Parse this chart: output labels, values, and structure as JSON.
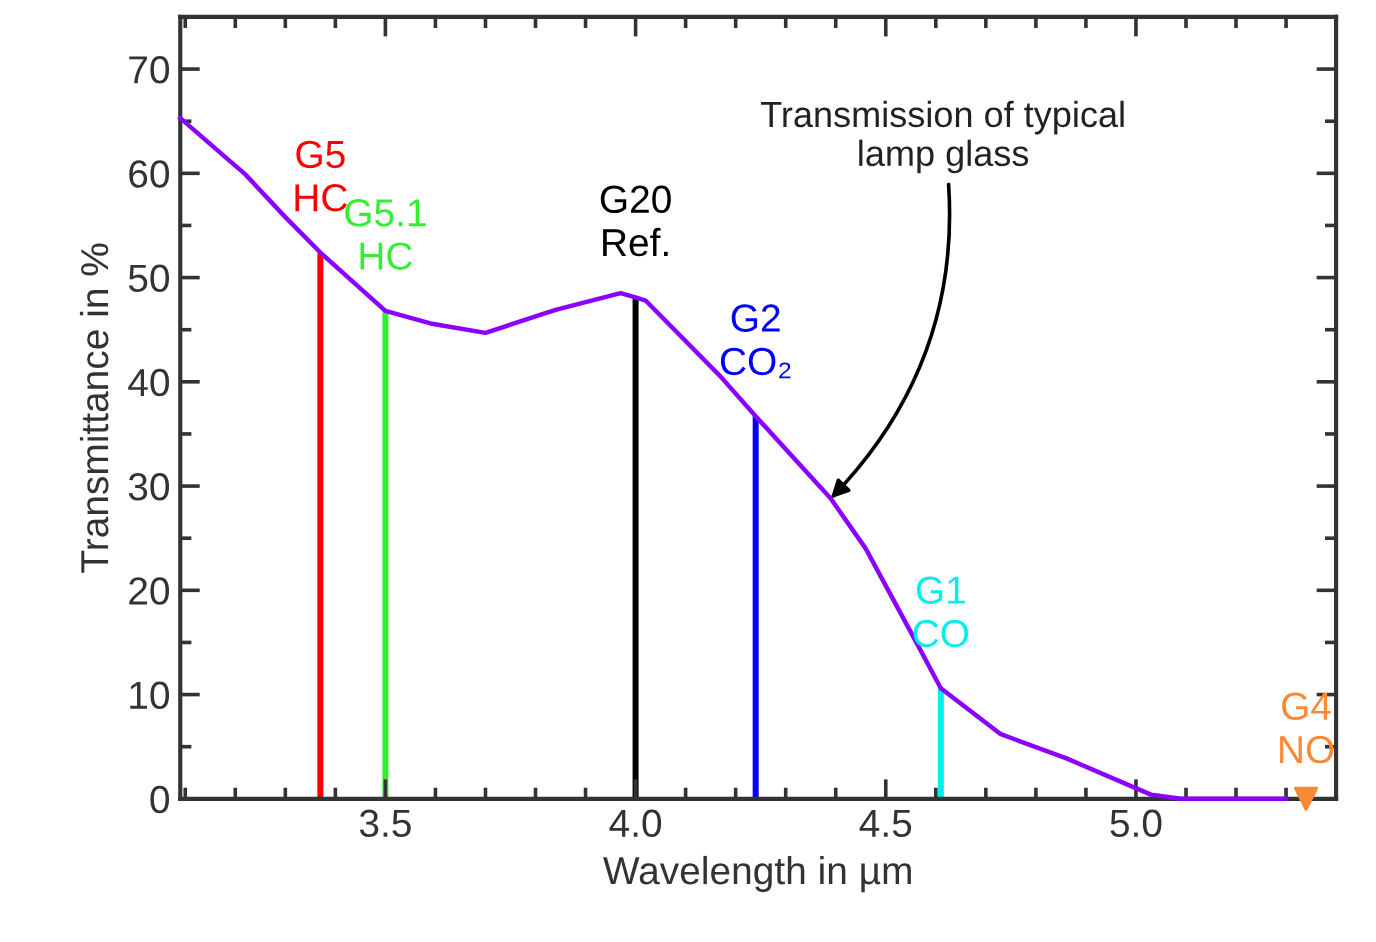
{
  "chart_data": {
    "type": "line",
    "xlabel": "Wavelength in µm",
    "ylabel": "Transmittance in %",
    "xlim": [
      3.09,
      5.4
    ],
    "ylim": [
      0,
      75
    ],
    "xticks": [
      3.5,
      {
        "value": 4.0,
        "label": "4.0"
      },
      {
        "value": 5.0,
        "label": "5.0"
      },
      4.5
    ],
    "yticks": [
      0,
      10,
      20,
      30,
      40,
      50,
      60,
      70
    ],
    "grid": false,
    "legend": false,
    "series": [
      {
        "color": "#8b00ff",
        "x": [
          3.09,
          3.22,
          3.3,
          3.37,
          3.5,
          3.59,
          3.7,
          3.84,
          3.97,
          4.0,
          4.02,
          4.17,
          4.24,
          4.39,
          4.46,
          4.56,
          4.61,
          4.73,
          4.86,
          5.03,
          5.09,
          5.3
        ],
        "values": [
          65.3,
          59.9,
          55.8,
          52.4,
          46.8,
          45.6,
          44.7,
          46.9,
          48.5,
          48.1,
          47.8,
          40.5,
          36.7,
          28.8,
          24.0,
          15.1,
          10.6,
          6.2,
          3.9,
          0.4,
          0,
          0
        ]
      },
      {
        "type": "bar",
        "name": "G5\nHC",
        "color": "#ff0000",
        "x": [
          3.37
        ],
        "values": [
          52.4
        ]
      },
      {
        "type": "bar",
        "name": "G5.1\nHC",
        "color": "#33ee33",
        "x": [
          3.5
        ],
        "values": [
          46.8
        ]
      },
      {
        "type": "bar",
        "name": "G20\nRef.",
        "color": "#000000",
        "x": [
          4.0
        ],
        "values": [
          48.1
        ]
      },
      {
        "type": "bar",
        "name": "G2\nCO₂",
        "color": "#0000ff",
        "x": [
          4.24
        ],
        "values": [
          36.7
        ]
      },
      {
        "type": "bar",
        "name": "G1\nCO",
        "color": "#00eeee",
        "x": [
          4.61
        ],
        "values": [
          10.6
        ]
      },
      {
        "type": "scatter",
        "marker": "triangle",
        "name": "G4\nNO",
        "color": "#ff8833",
        "x": [
          5.34
        ],
        "values": [
          0
        ]
      }
    ],
    "annotations": [
      {
        "text": "Transmission of typical\nlamp glass",
        "x": 4.39,
        "y": 28.8
      }
    ]
  }
}
